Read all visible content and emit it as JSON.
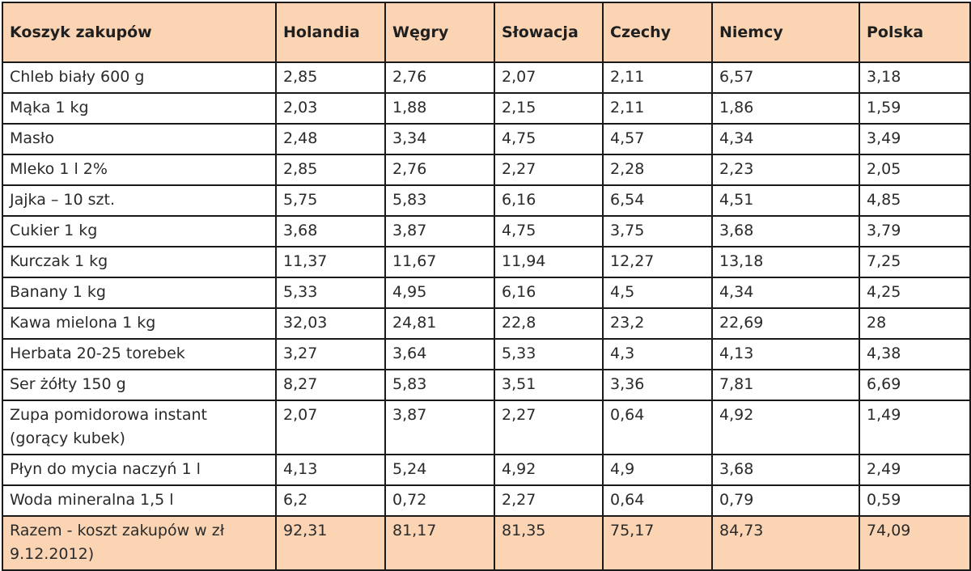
{
  "table": {
    "headers": [
      "Koszyk zakupów",
      "Holandia",
      "Węgry",
      "Słowacja",
      "Czechy",
      "Niemcy",
      "Polska"
    ],
    "rows": [
      [
        "Chleb biały 600 g",
        "2,85",
        "2,76",
        "2,07",
        "2,11",
        "6,57",
        "3,18"
      ],
      [
        "Mąka 1 kg",
        "2,03",
        "1,88",
        "2,15",
        "2,11",
        "1,86",
        "1,59"
      ],
      [
        "Masło",
        "2,48",
        "3,34",
        "4,75",
        "4,57",
        "4,34",
        "3,49"
      ],
      [
        "Mleko 1 l 2%",
        "2,85",
        "2,76",
        "2,27",
        "2,28",
        "2,23",
        "2,05"
      ],
      [
        "Jajka – 10 szt.",
        "5,75",
        "5,83",
        "6,16",
        "6,54",
        "4,51",
        "4,85"
      ],
      [
        "Cukier 1 kg",
        "3,68",
        "3,87",
        "4,75",
        "3,75",
        "3,68",
        "3,79"
      ],
      [
        "Kurczak 1 kg",
        "11,37",
        "11,67",
        "11,94",
        "12,27",
        "13,18",
        "7,25"
      ],
      [
        "Banany 1 kg",
        "5,33",
        "4,95",
        "6,16",
        "4,5",
        "4,34",
        "4,25"
      ],
      [
        "Kawa mielona 1 kg",
        "32,03",
        "24,81",
        "22,8",
        "23,2",
        "22,69",
        "28"
      ],
      [
        "Herbata 20-25 torebek",
        "3,27",
        "3,64",
        "5,33",
        "4,3",
        "4,13",
        "4,38"
      ],
      [
        "Ser żółty 150 g",
        "8,27",
        "5,83",
        "3,51",
        "3,36",
        "7,81",
        "6,69"
      ],
      [
        "Zupa pomidorowa instant (gorący kubek)",
        "2,07",
        "3,87",
        "2,27",
        "0,64",
        "4,92",
        "1,49"
      ],
      [
        "Płyn do mycia naczyń 1 l",
        "4,13",
        "5,24",
        "4,92",
        "4,9",
        "3,68",
        "2,49"
      ],
      [
        "Woda mineralna  1,5 l",
        "6,2",
        "0,72",
        "2,27",
        "0,64",
        "0,79",
        "0,59"
      ]
    ],
    "total": [
      "Razem - koszt zakupów w zł 9.12.2012)",
      "92,31",
      "81,17",
      "81,35",
      "75,17",
      "84,73",
      "74,09"
    ]
  }
}
